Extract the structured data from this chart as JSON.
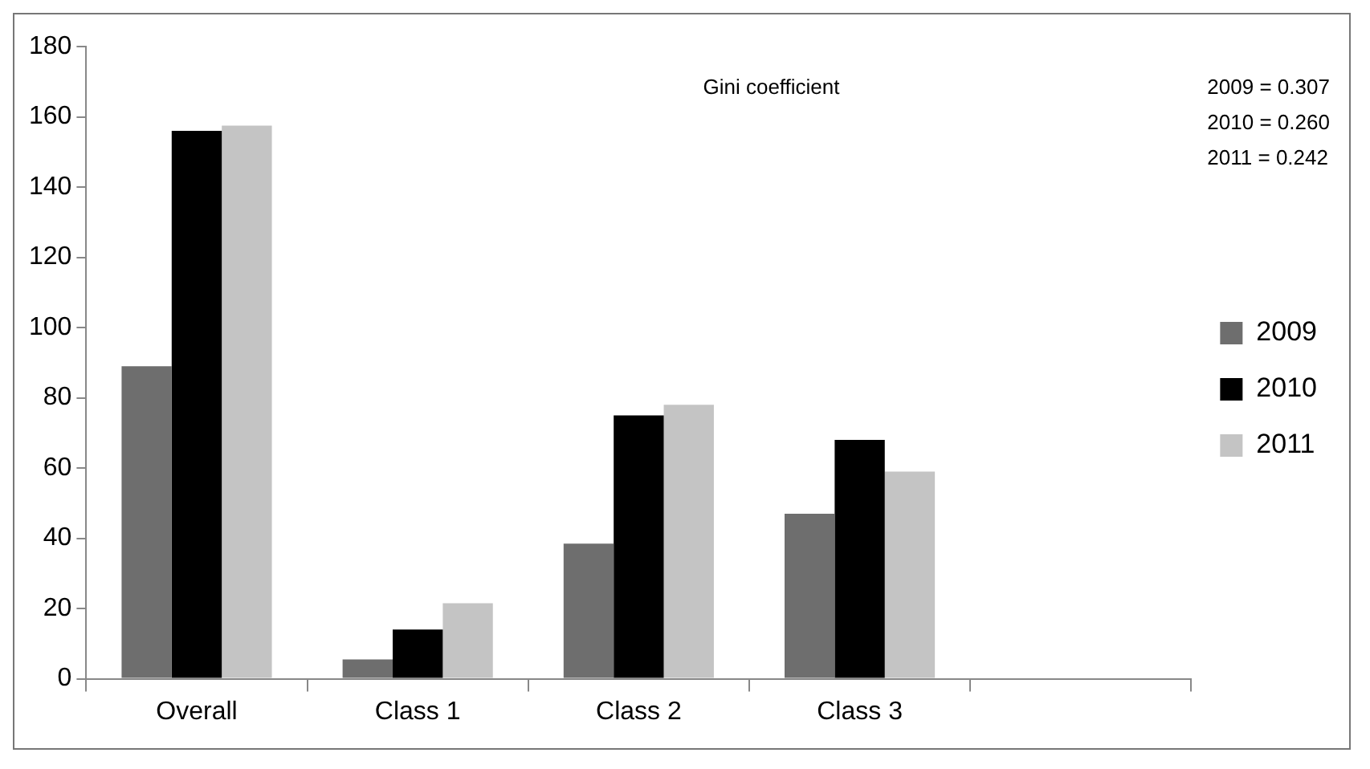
{
  "chart_data": {
    "type": "bar",
    "categories": [
      "Overall",
      "Class 1",
      "Class 2",
      "Class 3",
      null
    ],
    "series": [
      {
        "name": "2009",
        "color": "#6e6e6e",
        "values": [
          89,
          5.5,
          38.5,
          47,
          null
        ]
      },
      {
        "name": "2010",
        "color": "#000000",
        "values": [
          156,
          14,
          75,
          68,
          null
        ]
      },
      {
        "name": "2011",
        "color": "#c4c4c4",
        "values": [
          157.5,
          21.5,
          78,
          59,
          null
        ]
      }
    ],
    "ylim": [
      0,
      180
    ],
    "yticks": [
      0,
      20,
      40,
      60,
      80,
      100,
      120,
      140,
      160,
      180
    ],
    "grid": false,
    "legend": "right",
    "annotations": [
      "Gini coefficient",
      "2009 = 0.307",
      "2010 = 0.260",
      "2011 = 0.242"
    ]
  }
}
